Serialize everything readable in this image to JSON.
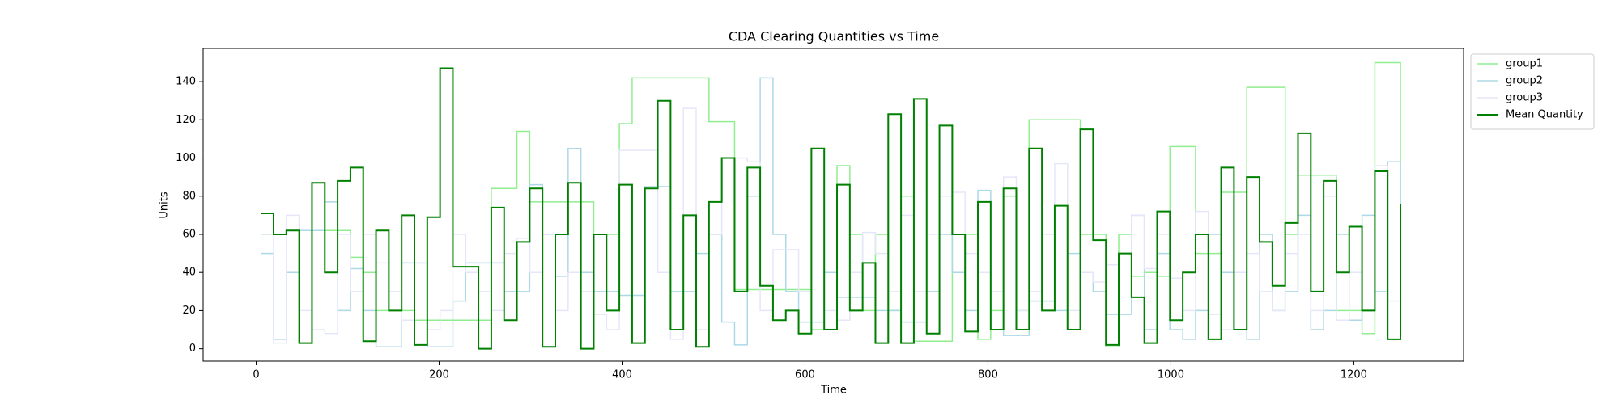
{
  "chart_data": {
    "type": "step",
    "step": "post",
    "title": "CDA Clearing Quantities vs Time",
    "x_label": "Time",
    "y_label": "Units",
    "xlim": [
      -58,
      1320
    ],
    "ylim": [
      -6.5,
      157.4
    ],
    "xticks": [
      0,
      200,
      400,
      600,
      800,
      1000,
      1200
    ],
    "yticks": [
      0,
      20,
      40,
      60,
      80,
      100,
      120,
      140
    ],
    "grid": false,
    "legend": "outside-upper-right",
    "x": [
      5,
      19,
      33,
      47,
      61,
      75,
      89,
      103,
      117,
      131,
      145,
      159,
      173,
      187,
      201,
      215,
      229,
      243,
      257,
      271,
      285,
      299,
      313,
      327,
      341,
      355,
      369,
      383,
      397,
      411,
      425,
      439,
      453,
      467,
      481,
      495,
      509,
      523,
      537,
      551,
      565,
      579,
      593,
      607,
      621,
      635,
      649,
      663,
      677,
      691,
      705,
      719,
      733,
      747,
      761,
      775,
      789,
      803,
      817,
      831,
      845,
      859,
      873,
      887,
      901,
      915,
      929,
      943,
      957,
      971,
      985,
      999,
      1013,
      1027,
      1041,
      1055,
      1069,
      1083,
      1097,
      1111,
      1125,
      1139,
      1153,
      1167,
      1181,
      1195,
      1209,
      1223,
      1237,
      1251
    ],
    "series": [
      {
        "name": "group1",
        "color": "#90ee90",
        "width": 1.5,
        "values": [
          60,
          60,
          62,
          62,
          62,
          62,
          62,
          48,
          40,
          20,
          20,
          20,
          15,
          15,
          15,
          15,
          15,
          15,
          84,
          84,
          114,
          77,
          77,
          77,
          77,
          77,
          60,
          60,
          118,
          142,
          142,
          142,
          142,
          142,
          142,
          119,
          119,
          31,
          31,
          31,
          31,
          31,
          31,
          10,
          10,
          96,
          60,
          20,
          60,
          20,
          80,
          4,
          4,
          4,
          60,
          60,
          5,
          20,
          80,
          20,
          120,
          120,
          120,
          120,
          60,
          60,
          1,
          60,
          38,
          40,
          38,
          106,
          106,
          50,
          50,
          82,
          82,
          137,
          137,
          137,
          60,
          91,
          91,
          91,
          20,
          20,
          8,
          150,
          150,
          76
        ]
      },
      {
        "name": "group2",
        "color": "#add8e6",
        "width": 1.5,
        "values": [
          50,
          5,
          40,
          62,
          62,
          77,
          20,
          42,
          20,
          1,
          1,
          45,
          45,
          1,
          1,
          25,
          45,
          45,
          45,
          30,
          30,
          86,
          60,
          38,
          105,
          40,
          30,
          30,
          28,
          28,
          85,
          85,
          30,
          30,
          50,
          60,
          14,
          2,
          80,
          142,
          60,
          30,
          14,
          14,
          40,
          27,
          27,
          27,
          20,
          20,
          14,
          14,
          30,
          60,
          40,
          20,
          83,
          10,
          7,
          7,
          25,
          25,
          20,
          50,
          40,
          30,
          18,
          18,
          70,
          10,
          50,
          10,
          5,
          20,
          60,
          40,
          10,
          5,
          60,
          20,
          30,
          70,
          10,
          20,
          60,
          15,
          70,
          30,
          98,
          20
        ]
      },
      {
        "name": "group3",
        "color": "#e6e6fa",
        "width": 1.5,
        "values": [
          60,
          3,
          70,
          20,
          10,
          8,
          60,
          30,
          60,
          45,
          30,
          15,
          45,
          10,
          20,
          60,
          40,
          30,
          20,
          50,
          58,
          40,
          60,
          20,
          40,
          30,
          18,
          10,
          104,
          104,
          104,
          40,
          5,
          126,
          10,
          60,
          100,
          100,
          98,
          20,
          52,
          52,
          30,
          105,
          20,
          15,
          40,
          61,
          50,
          30,
          70,
          30,
          60,
          80,
          82,
          50,
          40,
          30,
          90,
          20,
          30,
          60,
          97,
          20,
          40,
          35,
          44,
          50,
          70,
          42,
          60,
          37,
          20,
          72,
          18,
          10,
          40,
          50,
          30,
          20,
          50,
          60,
          20,
          80,
          15,
          40,
          20,
          96,
          25,
          15
        ]
      },
      {
        "name": "Mean Quantity",
        "color": "#008000",
        "width": 2,
        "values": [
          71,
          60,
          62,
          3,
          87,
          40,
          88,
          95,
          4,
          62,
          20,
          70,
          2,
          69,
          147,
          43,
          43,
          0,
          74,
          15,
          56,
          84,
          1,
          60,
          87,
          0,
          60,
          20,
          86,
          3,
          84,
          130,
          10,
          70,
          1,
          77,
          100,
          30,
          95,
          33,
          15,
          20,
          8,
          105,
          10,
          86,
          20,
          45,
          3,
          123,
          3,
          131,
          8,
          117,
          60,
          9,
          77,
          10,
          84,
          10,
          105,
          20,
          75,
          10,
          115,
          57,
          2,
          50,
          27,
          3,
          72,
          15,
          40,
          60,
          5,
          95,
          10,
          90,
          56,
          33,
          66,
          113,
          30,
          88,
          40,
          64,
          20,
          93,
          5,
          76
        ]
      }
    ]
  }
}
